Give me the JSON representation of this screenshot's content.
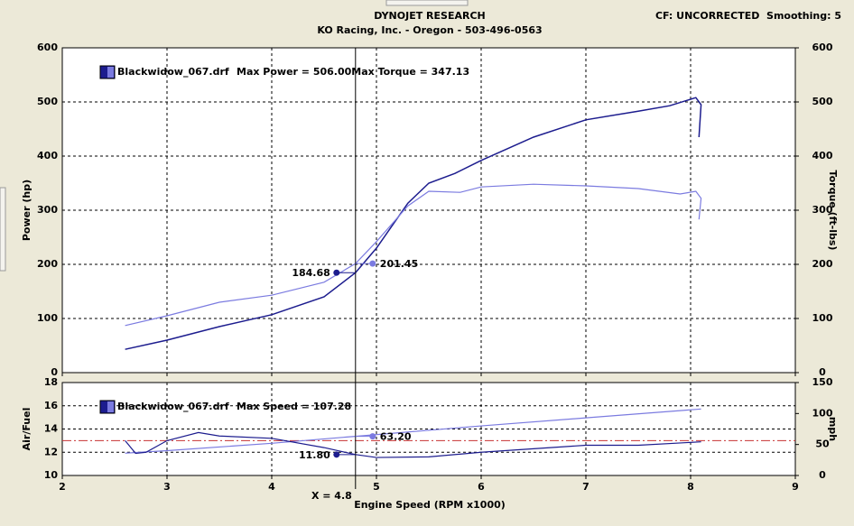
{
  "header": {
    "title": "DYNOJET RESEARCH",
    "subtitle": "KO Racing, Inc. - Oregon - 503-496-0563",
    "settings": "CF: UNCORRECTED  Smoothing: 5"
  },
  "chart_data": [
    {
      "type": "line",
      "legend_file": "Blackwidow_067.drf",
      "ylabel": "Power (hp)",
      "y2label": "Torque (ft-lbs)",
      "xlim": [
        2,
        9
      ],
      "xticks": [
        2,
        3,
        4,
        5,
        6,
        7,
        8,
        9
      ],
      "ylim": [
        0,
        600
      ],
      "yticks": [
        0,
        100,
        200,
        300,
        400,
        500,
        600
      ],
      "y2lim": [
        0,
        600
      ],
      "y2ticks": [
        0,
        100,
        200,
        300,
        400,
        500,
        600
      ],
      "grid": true,
      "series": [
        {
          "name": "Max Power = 506.00",
          "color": "#1c1c8e",
          "cursor_value": 184.68,
          "x": [
            2.6,
            3.0,
            3.5,
            4.0,
            4.5,
            4.8,
            5.0,
            5.3,
            5.5,
            5.75,
            6.0,
            6.5,
            7.0,
            7.5,
            7.8,
            8.05,
            8.1,
            8.08
          ],
          "values": [
            43,
            60,
            85,
            107,
            140,
            184.68,
            230,
            313,
            350,
            368,
            392,
            435,
            467,
            483,
            493,
            508,
            495,
            435
          ]
        },
        {
          "name": "Max Torque = 347.13",
          "color": "#7b7be0",
          "axis": "y2",
          "cursor_value": 201.45,
          "x": [
            2.6,
            3.0,
            3.5,
            4.0,
            4.5,
            4.8,
            5.0,
            5.3,
            5.5,
            5.8,
            6.0,
            6.5,
            7.0,
            7.5,
            7.9,
            8.05,
            8.1,
            8.08
          ],
          "values": [
            87,
            105,
            130,
            143,
            167,
            201.45,
            242,
            308,
            335,
            333,
            343,
            348,
            345,
            340,
            330,
            335,
            322,
            283
          ]
        }
      ]
    },
    {
      "type": "line",
      "legend_file": "Blackwidow_067.drf",
      "ylabel": "Air/Fuel",
      "y2label": "mph",
      "xlabel": "Engine Speed (RPM x1000)",
      "xlim": [
        2,
        9
      ],
      "xticks": [
        2,
        3,
        4,
        5,
        6,
        7,
        8,
        9
      ],
      "ylim": [
        10,
        18
      ],
      "yticks": [
        10,
        12,
        14,
        16,
        18
      ],
      "y2lim": [
        0,
        150
      ],
      "y2ticks": [
        0,
        50,
        100,
        150
      ],
      "grid": true,
      "cursor": {
        "value": 4.8,
        "label": "X = 4.8"
      },
      "ref_line": {
        "value": 13,
        "color": "#c83232"
      },
      "series": [
        {
          "name": "Max Speed = 107.28",
          "color": "#7b7be0",
          "axis": "y2",
          "cursor_value": 63.2,
          "cursor_value_label": "63.20",
          "x": [
            2.6,
            3.0,
            4.0,
            4.8,
            6.0,
            7.0,
            8.1
          ],
          "values": [
            36,
            40,
            52,
            63.2,
            80,
            93,
            107.28
          ]
        },
        {
          "name": "Air/Fuel",
          "color": "#1c1c8e",
          "cursor_value": 11.8,
          "cursor_value_label": "11.80",
          "x": [
            2.6,
            2.7,
            2.8,
            3.0,
            3.3,
            3.5,
            4.0,
            4.5,
            4.8,
            5.0,
            5.5,
            6.0,
            6.5,
            7.0,
            7.5,
            8.1
          ],
          "values": [
            13.0,
            11.9,
            12.0,
            13.0,
            13.7,
            13.4,
            13.2,
            12.4,
            11.8,
            11.55,
            11.6,
            12.0,
            12.3,
            12.6,
            12.6,
            12.9
          ]
        }
      ]
    }
  ]
}
